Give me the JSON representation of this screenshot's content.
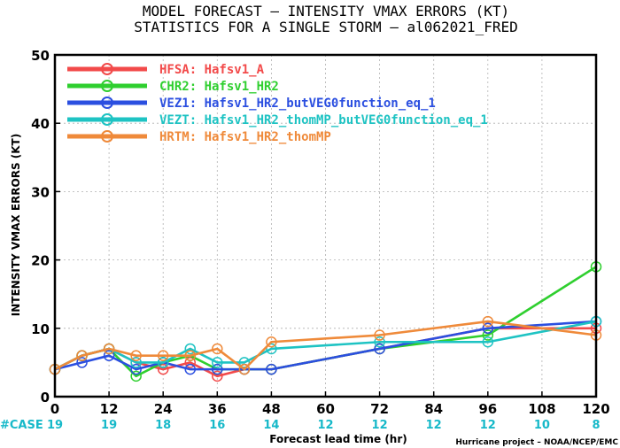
{
  "chart_data": {
    "type": "line",
    "title": [
      "MODEL FORECAST – INTENSITY VMAX ERRORS (KT)",
      "STATISTICS FOR A SINGLE STORM – al062021_FRED"
    ],
    "xlabel": "Forecast lead time (hr)",
    "ylabel": "INTENSITY VMAX ERRORS (KT)",
    "xlim": [
      0,
      120
    ],
    "ylim": [
      0,
      50
    ],
    "xticks": [
      0,
      12,
      24,
      36,
      48,
      60,
      72,
      84,
      96,
      108,
      120
    ],
    "yticks": [
      0,
      10,
      20,
      30,
      40,
      50
    ],
    "grid": true,
    "legend_position": "top-left",
    "series": [
      {
        "name": "HFSA: Hafsv1_A",
        "color": "#f24a4a",
        "x": [
          0,
          6,
          12,
          18,
          24,
          30,
          36,
          42,
          48,
          72,
          96,
          120
        ],
        "values": [
          4,
          6,
          7,
          5,
          4,
          5,
          3,
          4,
          4,
          7,
          10,
          10
        ]
      },
      {
        "name": "CHR2: Hafsv1_HR2",
        "color": "#2fcf2f",
        "x": [
          0,
          6,
          12,
          18,
          24,
          30,
          36,
          42,
          48,
          72,
          96,
          120
        ],
        "values": [
          4,
          6,
          7,
          3,
          5,
          6,
          4,
          4,
          4,
          7,
          9,
          19
        ]
      },
      {
        "name": "VEZ1: Hafsv1_HR2_butVEG0function_eq_1",
        "color": "#2b4fe0",
        "x": [
          0,
          6,
          12,
          18,
          24,
          30,
          36,
          42,
          48,
          72,
          96,
          120
        ],
        "values": [
          4,
          5,
          6,
          4,
          5,
          4,
          4,
          4,
          4,
          7,
          10,
          11
        ]
      },
      {
        "name": "VEZT: Hafsv1_HR2_thomMP_butVEG0function_eq_1",
        "color": "#1ec3c3",
        "x": [
          0,
          6,
          12,
          18,
          24,
          30,
          36,
          42,
          48,
          72,
          96,
          120
        ],
        "values": [
          4,
          6,
          7,
          5,
          5,
          7,
          5,
          5,
          7,
          8,
          8,
          11
        ]
      },
      {
        "name": "HRTM: Hafsv1_HR2_thomMP",
        "color": "#ef8a3a",
        "x": [
          0,
          6,
          12,
          18,
          24,
          30,
          36,
          42,
          48,
          72,
          96,
          120
        ],
        "values": [
          4,
          6,
          7,
          6,
          6,
          6,
          7,
          4,
          8,
          9,
          11,
          9
        ]
      }
    ],
    "case_label": "#CASE",
    "cases": [
      {
        "x": 0,
        "n": "19"
      },
      {
        "x": 12,
        "n": "19"
      },
      {
        "x": 24,
        "n": "18"
      },
      {
        "x": 36,
        "n": "16"
      },
      {
        "x": 48,
        "n": "14"
      },
      {
        "x": 60,
        "n": "12"
      },
      {
        "x": 72,
        "n": "12"
      },
      {
        "x": 84,
        "n": "12"
      },
      {
        "x": 96,
        "n": "12"
      },
      {
        "x": 108,
        "n": "10"
      },
      {
        "x": 120,
        "n": "8"
      }
    ],
    "credit": "Hurricane project – NOAA/NCEP/EMC"
  }
}
